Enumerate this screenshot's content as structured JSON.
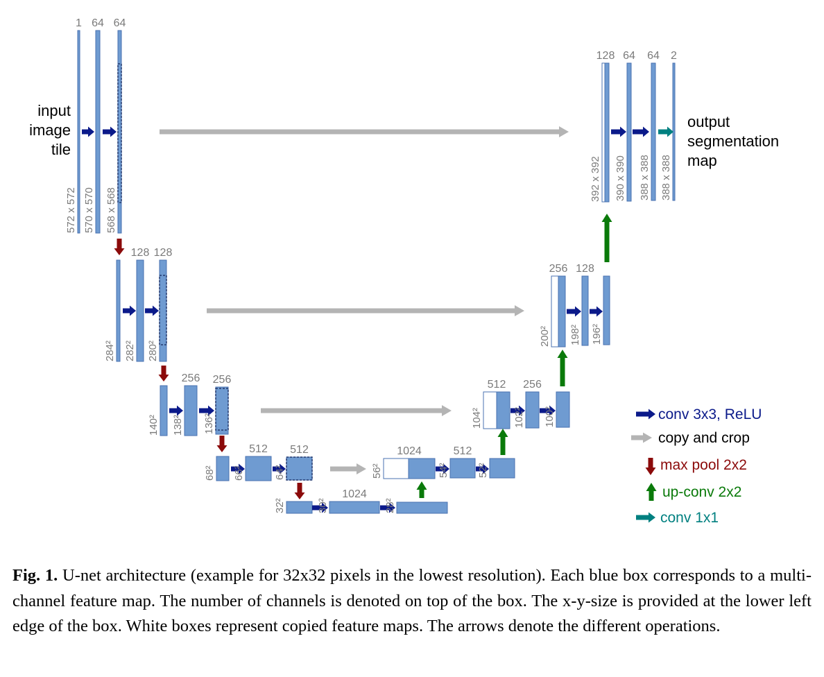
{
  "diagram": {
    "input_label": [
      "input",
      "image",
      "tile"
    ],
    "output_label": [
      "output",
      "segmentation",
      "map"
    ],
    "feature_maps": [
      {
        "id": "l1a",
        "channels": "1",
        "size": "572 x 572"
      },
      {
        "id": "l1b",
        "channels": "64",
        "size": "570 x 570"
      },
      {
        "id": "l1c",
        "channels": "64",
        "size": "568 x 568"
      },
      {
        "id": "l2a",
        "channels": "",
        "size": "284²"
      },
      {
        "id": "l2b",
        "channels": "128",
        "size": "282²"
      },
      {
        "id": "l2c",
        "channels": "128",
        "size": "280²"
      },
      {
        "id": "l3a",
        "channels": "",
        "size": "140²"
      },
      {
        "id": "l3b",
        "channels": "256",
        "size": "138²"
      },
      {
        "id": "l3c",
        "channels": "256",
        "size": "136²"
      },
      {
        "id": "l4a",
        "channels": "",
        "size": "68²"
      },
      {
        "id": "l4b",
        "channels": "512",
        "size": "66²"
      },
      {
        "id": "l4c",
        "channels": "512",
        "size": "64²"
      },
      {
        "id": "b1",
        "channels": "",
        "size": "32²"
      },
      {
        "id": "b2",
        "channels": "1024",
        "size": "30²"
      },
      {
        "id": "b3",
        "channels": "",
        "size": "28²"
      },
      {
        "id": "u4a",
        "channels": "1024",
        "size": "56²"
      },
      {
        "id": "u4b",
        "channels": "512",
        "size": "54²"
      },
      {
        "id": "u4c",
        "channels": "",
        "size": "52²"
      },
      {
        "id": "u3a",
        "channels": "512",
        "size": "104²"
      },
      {
        "id": "u3b",
        "channels": "256",
        "size": "102²"
      },
      {
        "id": "u3c",
        "channels": "",
        "size": "100²"
      },
      {
        "id": "u2a",
        "channels": "256",
        "size": "200²"
      },
      {
        "id": "u2b",
        "channels": "128",
        "size": "198²"
      },
      {
        "id": "u2c",
        "channels": "",
        "size": "196²"
      },
      {
        "id": "u1a",
        "channels": "128",
        "size": "392 x 392"
      },
      {
        "id": "u1b",
        "channels": "64",
        "size": "390 x 390"
      },
      {
        "id": "u1c",
        "channels": "64",
        "size": "388 x 388"
      },
      {
        "id": "u1d",
        "channels": "2",
        "size": "388 x 388"
      }
    ]
  },
  "legend": [
    {
      "label": "conv 3x3, ReLU",
      "color": "#0b1a8a",
      "icon": "right-arrow-icon"
    },
    {
      "label": "copy and crop",
      "color": "#000000",
      "icon": "gray-right-arrow-icon"
    },
    {
      "label": "max pool 2x2",
      "color": "#8b0a0a",
      "icon": "down-arrow-icon"
    },
    {
      "label": "up-conv 2x2",
      "color": "#0a7a0a",
      "icon": "up-arrow-icon"
    },
    {
      "label": "conv 1x1",
      "color": "#008080",
      "icon": "teal-right-arrow-icon"
    }
  ],
  "colors": {
    "box_fill": "#6f9bd1",
    "box_stroke": "#4a72b0",
    "conv_arrow": "#0b1a8a",
    "copy_arrow": "#b4b4b4",
    "pool_arrow": "#8b0a0a",
    "upconv_arrow": "#0a7a0a",
    "conv1x1_arrow": "#008080"
  },
  "caption": {
    "label": "Fig. 1.",
    "text": "U-net architecture (example for 32x32 pixels in the lowest resolution). Each blue box corresponds to a multi-channel feature map. The number of channels is denoted on top of the box. The x-y-size is provided at the lower left edge of the box. White boxes represent copied feature maps. The arrows denote the different operations."
  }
}
